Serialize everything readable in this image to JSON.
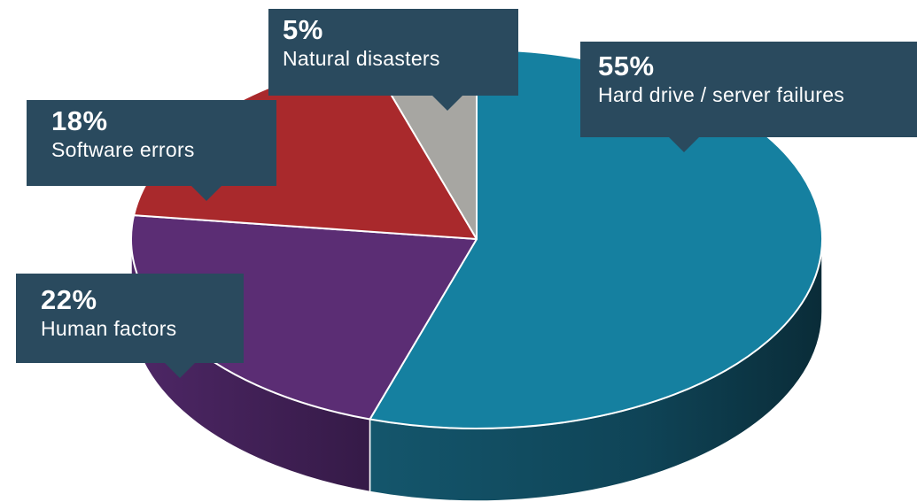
{
  "chart_data": {
    "type": "pie",
    "style": "3d-exploded-look",
    "slices": [
      {
        "label": "Hard drive / server failures",
        "value": 55,
        "value_label": "55%",
        "color": "#1580a0",
        "side_color": "#0f5468"
      },
      {
        "label": "Human factors",
        "value": 22,
        "value_label": "22%",
        "color": "#5b2d74",
        "side_color": "#3d1c50"
      },
      {
        "label": "Software errors",
        "value": 18,
        "value_label": "18%",
        "color": "#a9292c",
        "side_color": "#7a1b1e"
      },
      {
        "label": "Natural disasters",
        "value": 5,
        "value_label": "5%",
        "color": "#a7a6a2",
        "side_color": "#7d7c79"
      }
    ],
    "callout_color": "#2a4a5e"
  }
}
